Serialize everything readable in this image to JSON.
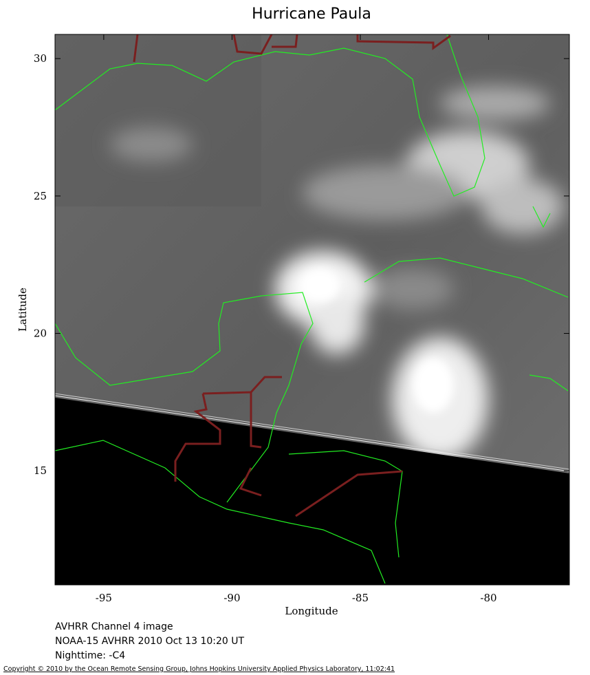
{
  "title": "Hurricane Paula",
  "map": {
    "xlabel": "Longitude",
    "ylabel": "Latitude",
    "xlim": [
      -96.9,
      -76.85
    ],
    "ylim": [
      10.85,
      30.88
    ],
    "xticks": [
      -95,
      -90,
      -85,
      -80
    ],
    "yticks": [
      15,
      20,
      25,
      30
    ]
  },
  "caption": [
    "AVHRR Channel 4 image",
    "NOAA-15 AVHRR 2010 Oct 13 10:20 UT",
    "Nighttime: -C4"
  ],
  "copyright": "Copyright © 2010 by the Ocean Remote Sensing Group, Johns Hopkins University Applied Physics Laboratory, 11:02:41"
}
